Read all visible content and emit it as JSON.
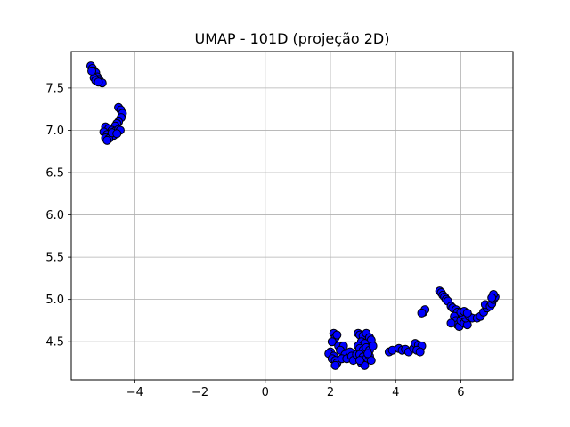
{
  "chart_data": {
    "type": "scatter",
    "title": "UMAP - 101D (projeção 2D)",
    "xlabel": "",
    "ylabel": "",
    "xlim": [
      -5.95,
      7.6
    ],
    "ylim": [
      4.05,
      7.93
    ],
    "grid": true,
    "x_ticks": [
      {
        "value": -4,
        "label": "−4"
      },
      {
        "value": -2,
        "label": "−2"
      },
      {
        "value": 0,
        "label": "0"
      },
      {
        "value": 2,
        "label": "2"
      },
      {
        "value": 4,
        "label": "4"
      },
      {
        "value": 6,
        "label": "6"
      }
    ],
    "y_ticks": [
      {
        "value": 4.5,
        "label": "4.5"
      },
      {
        "value": 5.0,
        "label": "5.0"
      },
      {
        "value": 5.5,
        "label": "5.5"
      },
      {
        "value": 6.0,
        "label": "6.0"
      },
      {
        "value": 6.5,
        "label": "6.5"
      },
      {
        "value": 7.0,
        "label": "7.0"
      },
      {
        "value": 7.5,
        "label": "7.5"
      }
    ],
    "marker_color": "#0000ff",
    "marker_edge_color": "#000000",
    "points": [
      {
        "x": -5.35,
        "y": 7.76
      },
      {
        "x": -5.3,
        "y": 7.73
      },
      {
        "x": -5.25,
        "y": 7.7
      },
      {
        "x": -5.2,
        "y": 7.68
      },
      {
        "x": -5.15,
        "y": 7.63
      },
      {
        "x": -5.1,
        "y": 7.6
      },
      {
        "x": -5.05,
        "y": 7.57
      },
      {
        "x": -5.0,
        "y": 7.56
      },
      {
        "x": -5.25,
        "y": 7.62
      },
      {
        "x": -5.2,
        "y": 7.59
      },
      {
        "x": -5.12,
        "y": 7.57
      },
      {
        "x": -5.32,
        "y": 7.7
      },
      {
        "x": -4.5,
        "y": 7.27
      },
      {
        "x": -4.43,
        "y": 7.24
      },
      {
        "x": -4.38,
        "y": 7.2
      },
      {
        "x": -4.42,
        "y": 7.15
      },
      {
        "x": -4.5,
        "y": 7.1
      },
      {
        "x": -4.55,
        "y": 7.08
      },
      {
        "x": -4.6,
        "y": 7.05
      },
      {
        "x": -4.9,
        "y": 7.04
      },
      {
        "x": -4.8,
        "y": 7.02
      },
      {
        "x": -4.7,
        "y": 7.0
      },
      {
        "x": -4.6,
        "y": 6.99
      },
      {
        "x": -4.5,
        "y": 7.01
      },
      {
        "x": -4.45,
        "y": 7.0
      },
      {
        "x": -4.95,
        "y": 6.98
      },
      {
        "x": -4.85,
        "y": 6.95
      },
      {
        "x": -4.75,
        "y": 6.93
      },
      {
        "x": -4.65,
        "y": 6.94
      },
      {
        "x": -4.9,
        "y": 6.91
      },
      {
        "x": -4.8,
        "y": 6.9
      },
      {
        "x": -4.7,
        "y": 6.97
      },
      {
        "x": -4.55,
        "y": 6.96
      },
      {
        "x": -4.85,
        "y": 6.88
      },
      {
        "x": 2.1,
        "y": 4.6
      },
      {
        "x": 2.15,
        "y": 4.55
      },
      {
        "x": 2.2,
        "y": 4.58
      },
      {
        "x": 2.05,
        "y": 4.5
      },
      {
        "x": 2.25,
        "y": 4.45
      },
      {
        "x": 2.4,
        "y": 4.45
      },
      {
        "x": 2.0,
        "y": 4.38
      },
      {
        "x": 1.95,
        "y": 4.36
      },
      {
        "x": 2.1,
        "y": 4.33
      },
      {
        "x": 2.3,
        "y": 4.4
      },
      {
        "x": 2.45,
        "y": 4.35
      },
      {
        "x": 2.05,
        "y": 4.3
      },
      {
        "x": 2.15,
        "y": 4.28
      },
      {
        "x": 2.2,
        "y": 4.25
      },
      {
        "x": 2.15,
        "y": 4.22
      },
      {
        "x": 2.35,
        "y": 4.3
      },
      {
        "x": 2.5,
        "y": 4.3
      },
      {
        "x": 2.6,
        "y": 4.38
      },
      {
        "x": 2.65,
        "y": 4.33
      },
      {
        "x": 2.7,
        "y": 4.28
      },
      {
        "x": 2.8,
        "y": 4.35
      },
      {
        "x": 2.85,
        "y": 4.6
      },
      {
        "x": 2.9,
        "y": 4.58
      },
      {
        "x": 3.0,
        "y": 4.57
      },
      {
        "x": 3.1,
        "y": 4.6
      },
      {
        "x": 3.2,
        "y": 4.55
      },
      {
        "x": 3.25,
        "y": 4.52
      },
      {
        "x": 2.95,
        "y": 4.5
      },
      {
        "x": 3.05,
        "y": 4.48
      },
      {
        "x": 2.85,
        "y": 4.45
      },
      {
        "x": 2.9,
        "y": 4.42
      },
      {
        "x": 3.0,
        "y": 4.4
      },
      {
        "x": 3.1,
        "y": 4.43
      },
      {
        "x": 3.2,
        "y": 4.4
      },
      {
        "x": 3.3,
        "y": 4.45
      },
      {
        "x": 2.9,
        "y": 4.35
      },
      {
        "x": 3.0,
        "y": 4.32
      },
      {
        "x": 3.1,
        "y": 4.3
      },
      {
        "x": 3.2,
        "y": 4.33
      },
      {
        "x": 3.25,
        "y": 4.28
      },
      {
        "x": 2.95,
        "y": 4.25
      },
      {
        "x": 3.05,
        "y": 4.22
      },
      {
        "x": 2.9,
        "y": 4.28
      },
      {
        "x": 3.15,
        "y": 4.36
      },
      {
        "x": 3.8,
        "y": 4.38
      },
      {
        "x": 3.9,
        "y": 4.4
      },
      {
        "x": 4.1,
        "y": 4.42
      },
      {
        "x": 4.2,
        "y": 4.4
      },
      {
        "x": 4.3,
        "y": 4.41
      },
      {
        "x": 4.4,
        "y": 4.38
      },
      {
        "x": 4.55,
        "y": 4.42
      },
      {
        "x": 4.6,
        "y": 4.48
      },
      {
        "x": 4.7,
        "y": 4.46
      },
      {
        "x": 4.8,
        "y": 4.45
      },
      {
        "x": 4.65,
        "y": 4.4
      },
      {
        "x": 4.75,
        "y": 4.38
      },
      {
        "x": 4.85,
        "y": 4.85
      },
      {
        "x": 4.9,
        "y": 4.88
      },
      {
        "x": 4.8,
        "y": 4.84
      },
      {
        "x": 5.35,
        "y": 5.1
      },
      {
        "x": 5.4,
        "y": 5.08
      },
      {
        "x": 5.45,
        "y": 5.05
      },
      {
        "x": 5.5,
        "y": 5.03
      },
      {
        "x": 5.55,
        "y": 5.0
      },
      {
        "x": 5.6,
        "y": 4.98
      },
      {
        "x": 5.7,
        "y": 4.92
      },
      {
        "x": 5.75,
        "y": 4.9
      },
      {
        "x": 5.85,
        "y": 4.88
      },
      {
        "x": 5.9,
        "y": 4.85
      },
      {
        "x": 5.8,
        "y": 4.8
      },
      {
        "x": 5.85,
        "y": 4.75
      },
      {
        "x": 5.9,
        "y": 4.7
      },
      {
        "x": 5.95,
        "y": 4.68
      },
      {
        "x": 5.7,
        "y": 4.72
      },
      {
        "x": 6.0,
        "y": 4.75
      },
      {
        "x": 6.1,
        "y": 4.72
      },
      {
        "x": 6.2,
        "y": 4.7
      },
      {
        "x": 6.15,
        "y": 4.78
      },
      {
        "x": 6.05,
        "y": 4.82
      },
      {
        "x": 6.25,
        "y": 4.8
      },
      {
        "x": 6.35,
        "y": 4.78
      },
      {
        "x": 6.0,
        "y": 4.85
      },
      {
        "x": 6.1,
        "y": 4.86
      },
      {
        "x": 6.2,
        "y": 4.84
      },
      {
        "x": 6.5,
        "y": 4.78
      },
      {
        "x": 6.6,
        "y": 4.8
      },
      {
        "x": 6.7,
        "y": 4.85
      },
      {
        "x": 6.8,
        "y": 4.9
      },
      {
        "x": 6.75,
        "y": 4.94
      },
      {
        "x": 6.9,
        "y": 4.92
      },
      {
        "x": 6.95,
        "y": 4.95
      },
      {
        "x": 7.0,
        "y": 5.0
      },
      {
        "x": 7.05,
        "y": 5.03
      },
      {
        "x": 7.0,
        "y": 5.06
      },
      {
        "x": 6.95,
        "y": 5.02
      }
    ]
  }
}
